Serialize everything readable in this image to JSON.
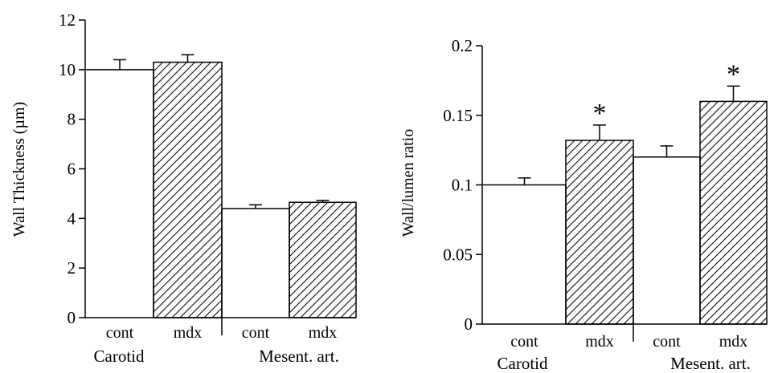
{
  "chart_data": [
    {
      "type": "bar",
      "ylabel": "Wall Thickness (µm)",
      "ylim": [
        0,
        12
      ],
      "yticks": [
        "0",
        "2",
        "4",
        "6",
        "8",
        "10",
        "12"
      ],
      "groups": [
        {
          "label": "Carotid",
          "bars": [
            {
              "label": "cont",
              "value": 10.0,
              "error": 0.4,
              "pattern": "open",
              "star": ""
            },
            {
              "label": "mdx",
              "value": 10.3,
              "error": 0.3,
              "pattern": "hatched",
              "star": ""
            }
          ]
        },
        {
          "label": "Mesent. art.",
          "bars": [
            {
              "label": "cont",
              "value": 4.4,
              "error": 0.15,
              "pattern": "open",
              "star": ""
            },
            {
              "label": "mdx",
              "value": 4.65,
              "error": 0.08,
              "pattern": "hatched",
              "star": ""
            }
          ]
        }
      ]
    },
    {
      "type": "bar",
      "ylabel": "Wall/lumen ratio",
      "ylim": [
        0,
        0.2
      ],
      "yticks": [
        "0",
        "0.05",
        "0.1",
        "0.15",
        "0.2"
      ],
      "groups": [
        {
          "label": "Carotid",
          "bars": [
            {
              "label": "cont",
              "value": 0.1,
              "error": 0.005,
              "pattern": "open",
              "star": ""
            },
            {
              "label": "mdx",
              "value": 0.132,
              "error": 0.011,
              "pattern": "hatched",
              "star": "*"
            }
          ]
        },
        {
          "label": "Mesent. art.",
          "bars": [
            {
              "label": "cont",
              "value": 0.12,
              "error": 0.008,
              "pattern": "open",
              "star": ""
            },
            {
              "label": "mdx",
              "value": 0.16,
              "error": 0.011,
              "pattern": "hatched",
              "star": "*"
            }
          ]
        }
      ]
    }
  ]
}
